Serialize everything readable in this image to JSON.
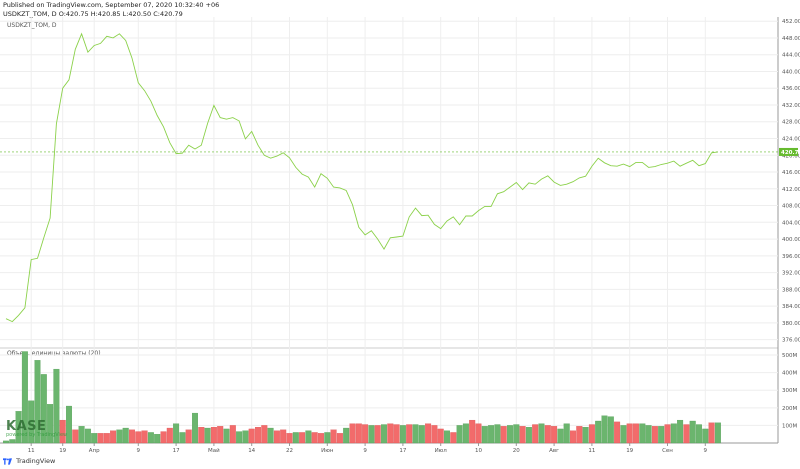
{
  "header": {
    "published": "Published on TradingView.com, September 07, 2020 10:32:40 +06",
    "ticker_line": "USDKZT_TOM, D O:420.75 H:420.85 L:420.50 C:420.79"
  },
  "series_label": "USDKZT_TOM, D",
  "volume_label": "Объем, единицы валюты (20)",
  "footer": {
    "brand": "TradingView"
  },
  "watermark": {
    "main": "KASE",
    "sub": "powered by TradingView"
  },
  "colors": {
    "line": "#8bd14a",
    "price_tag": "#66bb2e",
    "vol_up": "#6bb56e",
    "vol_down": "#f26b6b",
    "grid": "#eeeeee"
  },
  "chart_data": [
    {
      "type": "line",
      "series": [
        {
          "name": "USDKZT_TOM",
          "values": [
            381.0,
            380.3,
            381.8,
            383.6,
            395.1,
            395.4,
            400.3,
            405.0,
            427.5,
            436.0,
            438.0,
            445.3,
            449.0,
            444.6,
            446.2,
            446.7,
            448.4,
            448.0,
            449.0,
            447.4,
            443.2,
            437.3,
            435.4,
            432.9,
            429.5,
            426.8,
            423.0,
            420.4,
            420.5,
            422.4,
            421.5,
            422.4,
            427.6,
            431.9,
            429.0,
            428.6,
            429.0,
            428.2,
            423.9,
            425.7,
            422.4,
            420.0,
            419.3,
            419.8,
            420.6,
            419.4,
            417.1,
            415.5,
            414.8,
            412.4,
            415.6,
            414.5,
            412.4,
            412.2,
            411.6,
            408.2,
            402.8,
            401.0,
            402.0,
            400.0,
            397.6,
            400.3,
            400.5,
            400.7,
            405.3,
            407.4,
            405.6,
            405.7,
            403.5,
            402.5,
            404.3,
            405.3,
            403.4,
            405.5,
            405.5,
            406.8,
            407.8,
            407.8,
            410.8,
            411.3,
            412.4,
            413.5,
            411.8,
            413.4,
            413.1,
            414.3,
            415.1,
            413.6,
            412.8,
            413.1,
            413.7,
            414.6,
            415.0,
            417.4,
            419.3,
            418.2,
            417.5,
            417.4,
            417.9,
            417.3,
            418.3,
            418.3,
            417.1,
            417.3,
            417.8,
            418.1,
            418.6,
            417.4,
            418.1,
            418.8,
            417.5,
            418.0,
            420.6,
            420.8
          ]
        }
      ],
      "y_ticks": [
        "376.00",
        "380.00",
        "384.00",
        "388.00",
        "392.00",
        "396.00",
        "400.00",
        "404.00",
        "408.00",
        "412.00",
        "416.00",
        "420.00",
        "424.00",
        "428.00",
        "432.00",
        "436.00",
        "440.00",
        "444.00",
        "448.00",
        "452.00"
      ],
      "ylim": [
        374.0,
        453.0
      ],
      "last_value": "420.79",
      "x_tick_labels": [
        "11",
        "19",
        "Апр",
        "9",
        "17",
        "Май",
        "14",
        "22",
        "Июн",
        "9",
        "17",
        "Июл",
        "10",
        "20",
        "Авг",
        "11",
        "19",
        "Сен",
        "9"
      ]
    },
    {
      "type": "bar",
      "name": "Объем, единицы валюты (20)",
      "values": [
        12,
        20,
        180,
        520,
        240,
        470,
        390,
        220,
        420,
        130,
        210,
        75,
        95,
        80,
        55,
        55,
        55,
        70,
        75,
        85,
        75,
        65,
        70,
        60,
        50,
        65,
        85,
        110,
        60,
        75,
        170,
        90,
        85,
        90,
        95,
        80,
        100,
        65,
        70,
        80,
        90,
        100,
        85,
        70,
        75,
        55,
        60,
        60,
        70,
        60,
        55,
        60,
        75,
        55,
        85,
        110,
        110,
        105,
        100,
        100,
        105,
        110,
        105,
        100,
        105,
        105,
        100,
        110,
        100,
        80,
        70,
        60,
        100,
        110,
        130,
        110,
        95,
        100,
        105,
        95,
        100,
        105,
        95,
        90,
        105,
        110,
        100,
        95,
        80,
        110,
        70,
        95,
        90,
        105,
        125,
        155,
        150,
        120,
        100,
        110,
        110,
        110,
        100,
        95,
        95,
        105,
        110,
        130,
        105,
        125,
        105,
        80,
        115,
        115
      ],
      "up": [
        true,
        true,
        true,
        true,
        true,
        true,
        true,
        true,
        true,
        false,
        true,
        false,
        true,
        true,
        true,
        false,
        false,
        false,
        true,
        true,
        false,
        false,
        false,
        true,
        true,
        false,
        false,
        true,
        true,
        false,
        true,
        false,
        true,
        false,
        false,
        true,
        false,
        true,
        true,
        false,
        false,
        false,
        true,
        false,
        false,
        false,
        true,
        false,
        true,
        false,
        false,
        true,
        false,
        false,
        true,
        false,
        false,
        false,
        true,
        false,
        true,
        false,
        false,
        true,
        false,
        true,
        true,
        false,
        false,
        false,
        true,
        false,
        true,
        true,
        false,
        false,
        true,
        true,
        true,
        false,
        true,
        true,
        false,
        true,
        false,
        true,
        false,
        false,
        true,
        true,
        false,
        false,
        true,
        false,
        true,
        true,
        true,
        false,
        true,
        false,
        false,
        true,
        true,
        false,
        true,
        false,
        true,
        true,
        false,
        true,
        true,
        true,
        false,
        true
      ],
      "y_ticks": [
        "100M",
        "200M",
        "300M",
        "400M",
        "500M"
      ],
      "ylim": [
        0,
        540
      ]
    }
  ]
}
